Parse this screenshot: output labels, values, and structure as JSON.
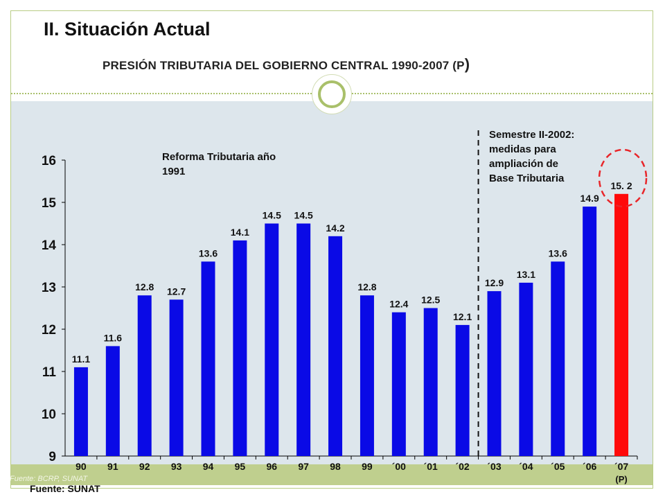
{
  "slide": {
    "title": "II. Situación Actual",
    "subtitle": "PRESIÓN TRIBUTARIA DEL GOBIERNO CENTRAL 1990-2007 (P",
    "subtitle_paren": ")",
    "footnote_faint": "Fuente: BCRP, SUNAT",
    "source": "Fuente: SUNAT"
  },
  "annotations": {
    "reform_line1": "Reforma Tributaria año",
    "reform_line2": "1991",
    "semester_line1": "Semestre II-2002:",
    "semester_line2": "medidas para",
    "semester_line3": "ampliación de",
    "semester_line4": "Base Tributaria"
  },
  "colors": {
    "bar": "#0a0ae6",
    "highlight_bar": "#ff0a0a",
    "circle": "#e8262a",
    "panel": "#dde6ec",
    "accent": "#a9c06a"
  },
  "chart_data": {
    "type": "bar",
    "categories": [
      "90",
      "91",
      "92",
      "93",
      "94",
      "95",
      "96",
      "97",
      "98",
      "99",
      "´00",
      "´01",
      "´02",
      "´03",
      "´04",
      "´05",
      "´06",
      "´07"
    ],
    "category_sub": [
      "",
      "",
      "",
      "",
      "",
      "",
      "",
      "",
      "",
      "",
      "",
      "",
      "",
      "",
      "",
      "",
      "",
      "(P)"
    ],
    "values": [
      11.1,
      11.6,
      12.8,
      12.7,
      13.6,
      14.1,
      14.5,
      14.5,
      14.2,
      12.8,
      12.4,
      12.5,
      12.1,
      12.9,
      13.1,
      13.6,
      14.9,
      15.2
    ],
    "value_labels": [
      "11.1",
      "11.6",
      "12.8",
      "12.7",
      "13.6",
      "14.1",
      "14.5",
      "14.5",
      "14.2",
      "12.8",
      "12.4",
      "12.5",
      "12.1",
      "12.9",
      "13.1",
      "13.6",
      "14.9",
      "15. 2"
    ],
    "highlight_index": 17,
    "ylim": [
      9,
      16
    ],
    "yticks": [
      9,
      10,
      11,
      12,
      13,
      14,
      15,
      16
    ],
    "divider_after_index": 12,
    "grid": false,
    "title": "",
    "xlabel": "",
    "ylabel": ""
  }
}
